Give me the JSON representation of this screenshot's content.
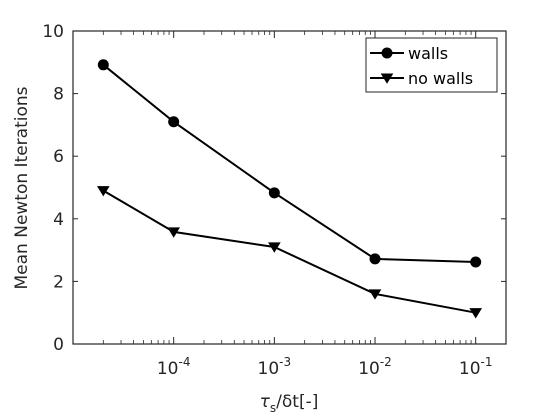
{
  "chart_data": {
    "type": "line",
    "title": "",
    "xlabel": "τs/δt[-]",
    "ylabel": "Mean Newton Iterations",
    "xscale": "log",
    "xlim": [
      1e-05,
      0.2
    ],
    "ylim": [
      0,
      10
    ],
    "grid": false,
    "legend_position": "top-right",
    "yticks": [
      {
        "value": 0,
        "label": "0"
      },
      {
        "value": 2,
        "label": "2"
      },
      {
        "value": 4,
        "label": "4"
      },
      {
        "value": 6,
        "label": "6"
      },
      {
        "value": 8,
        "label": "8"
      },
      {
        "value": 10,
        "label": "10"
      }
    ],
    "xticks": [
      {
        "value": 0.0001,
        "base": "10",
        "exp": "-4"
      },
      {
        "value": 0.001,
        "base": "10",
        "exp": "-3"
      },
      {
        "value": 0.01,
        "base": "10",
        "exp": "-2"
      },
      {
        "value": 0.1,
        "base": "10",
        "exp": "-1"
      }
    ],
    "series": [
      {
        "name": "walls",
        "marker": "circle",
        "color": "#000000",
        "x": [
          2e-05,
          0.0001,
          0.001,
          0.01,
          0.1
        ],
        "y": [
          8.92,
          7.1,
          4.83,
          2.72,
          2.62
        ]
      },
      {
        "name": "no walls",
        "marker": "triangle-down",
        "color": "#000000",
        "x": [
          2e-05,
          0.0001,
          0.001,
          0.01,
          0.1
        ],
        "y": [
          4.9,
          3.58,
          3.1,
          1.6,
          1.0
        ]
      }
    ]
  }
}
